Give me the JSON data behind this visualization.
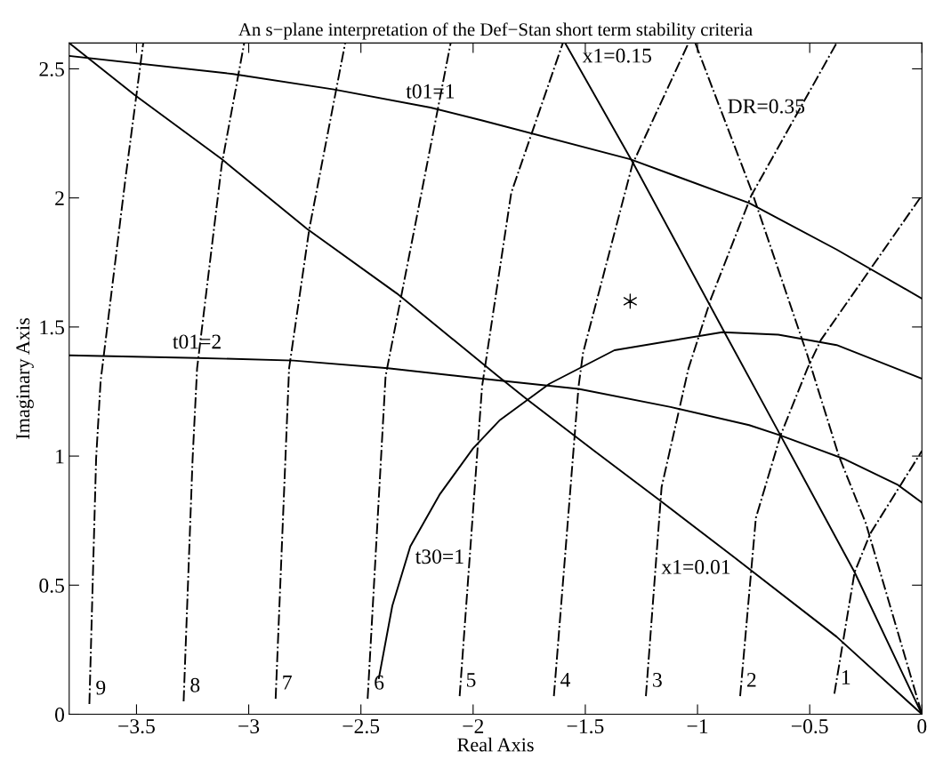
{
  "chart_data": {
    "type": "line",
    "title": "An s−plane interpretation of the Def−Stan short term stability criteria",
    "xlabel": "Real Axis",
    "ylabel": "Imaginary Axis",
    "xlim": [
      -3.8,
      0
    ],
    "ylim": [
      0,
      2.6
    ],
    "xticks": [
      {
        "value": -3.5,
        "label": "−3.5"
      },
      {
        "value": -3,
        "label": "−3"
      },
      {
        "value": -2.5,
        "label": "−2.5"
      },
      {
        "value": -2,
        "label": "−2"
      },
      {
        "value": -1.5,
        "label": "−1.5"
      },
      {
        "value": -1,
        "label": "−1"
      },
      {
        "value": -0.5,
        "label": "−0.5"
      },
      0
    ],
    "yticks": [
      0,
      0.5,
      1,
      1.5,
      2,
      2.5
    ],
    "grid": false,
    "series": [
      {
        "name": "t01=1",
        "color": "#000000",
        "line_style": "solid",
        "x": [
          -3.8,
          -3.07,
          -2.62,
          -2.19,
          -1.96,
          -1.3,
          -0.77,
          -0.38,
          0
        ],
        "values": [
          2.55,
          2.48,
          2.42,
          2.35,
          2.3,
          2.15,
          1.98,
          1.8,
          1.61
        ]
      },
      {
        "name": "t01=2",
        "color": "#000000",
        "line_style": "solid",
        "x": [
          -3.8,
          -3.23,
          -2.8,
          -2.38,
          -1.96,
          -1.53,
          -1.12,
          -0.77,
          -0.63,
          -0.35,
          -0.11,
          0
        ],
        "values": [
          1.39,
          1.38,
          1.37,
          1.34,
          1.3,
          1.26,
          1.19,
          1.12,
          1.08,
          0.99,
          0.89,
          0.82
        ]
      },
      {
        "name": "x1=0.01",
        "color": "#000000",
        "line_style": "solid",
        "x": [
          -3.8,
          -3.51,
          -3.12,
          -2.74,
          -2.34,
          -1.89,
          -1.76,
          -1.46,
          -1.17,
          -0.84,
          -0.38,
          0
        ],
        "values": [
          2.6,
          2.4,
          2.15,
          1.88,
          1.63,
          1.31,
          1.22,
          1.02,
          0.83,
          0.61,
          0.3,
          0
        ]
      },
      {
        "name": "x1=0.15",
        "color": "#000000",
        "line_style": "solid",
        "x": [
          -1.59,
          -1.29,
          -0.88,
          -0.63,
          -0.3,
          0
        ],
        "values": [
          2.6,
          2.14,
          1.48,
          1.08,
          0.55,
          0
        ]
      },
      {
        "name": "t30=1",
        "color": "#000000",
        "line_style": "solid",
        "x": [
          -2.42,
          -2.36,
          -2.28,
          -2.15,
          -2.0,
          -1.88,
          -1.66,
          -1.37,
          -0.89,
          -0.64,
          -0.38,
          0
        ],
        "values": [
          0.14,
          0.42,
          0.65,
          0.85,
          1.03,
          1.14,
          1.28,
          1.41,
          1.48,
          1.47,
          1.43,
          1.3
        ]
      },
      {
        "name": "9",
        "color": "#000000",
        "line_style": "dashdot",
        "x": [
          -3.71,
          -3.68,
          -3.66,
          -3.55,
          -3.47
        ],
        "values": [
          0.04,
          0.99,
          1.29,
          2.07,
          2.6
        ]
      },
      {
        "name": "8",
        "color": "#000000",
        "line_style": "dashdot",
        "x": [
          -3.29,
          -3.25,
          -3.23,
          -3.12,
          -3.02
        ],
        "values": [
          0.05,
          0.99,
          1.34,
          2.13,
          2.6
        ]
      },
      {
        "name": "7",
        "color": "#000000",
        "line_style": "dashdot",
        "x": [
          -2.88,
          -2.82,
          -2.73,
          -2.57
        ],
        "values": [
          0.06,
          1.34,
          1.88,
          2.6
        ]
      },
      {
        "name": "6",
        "color": "#000000",
        "line_style": "dashdot",
        "x": [
          -2.47,
          -2.39,
          -2.23,
          -2.1
        ],
        "values": [
          0.06,
          1.31,
          2.02,
          2.6
        ]
      },
      {
        "name": "5",
        "color": "#000000",
        "line_style": "dashdot",
        "x": [
          -2.06,
          -1.96,
          -1.83,
          -1.6
        ],
        "values": [
          0.07,
          1.27,
          2.02,
          2.6
        ]
      },
      {
        "name": "4",
        "color": "#000000",
        "line_style": "dashdot",
        "x": [
          -1.64,
          -1.53,
          -1.51,
          -1.29,
          -1.04
        ],
        "values": [
          0.07,
          1.27,
          1.4,
          2.13,
          2.6
        ]
      },
      {
        "name": "3",
        "color": "#000000",
        "line_style": "dashdot",
        "x": [
          -1.23,
          -1.16,
          -1.04,
          -0.94,
          -0.76,
          -0.38
        ],
        "values": [
          0.07,
          0.88,
          1.34,
          1.61,
          2.01,
          2.6
        ]
      },
      {
        "name": "2",
        "color": "#000000",
        "line_style": "dashdot",
        "x": [
          -0.81,
          -0.74,
          -0.63,
          -0.51,
          -0.45,
          0
        ],
        "values": [
          0.07,
          0.76,
          1.08,
          1.34,
          1.45,
          2.01
        ]
      },
      {
        "name": "1",
        "color": "#000000",
        "line_style": "dashdot",
        "x": [
          -0.39,
          -0.3,
          -0.23,
          0
        ],
        "values": [
          0.08,
          0.55,
          0.7,
          1.02
        ]
      },
      {
        "name": "DR=0.35",
        "color": "#000000",
        "line_style": "dashdot",
        "x": [
          -1.01,
          -0.76,
          -0.51,
          -0.37,
          -0.25,
          0
        ],
        "values": [
          2.6,
          2.03,
          1.39,
          1.0,
          0.74,
          0
        ]
      },
      {
        "type": "scatter",
        "color": "#000000",
        "marker": "cross",
        "x": [
          -1.3
        ],
        "values": [
          1.6
        ]
      }
    ]
  }
}
